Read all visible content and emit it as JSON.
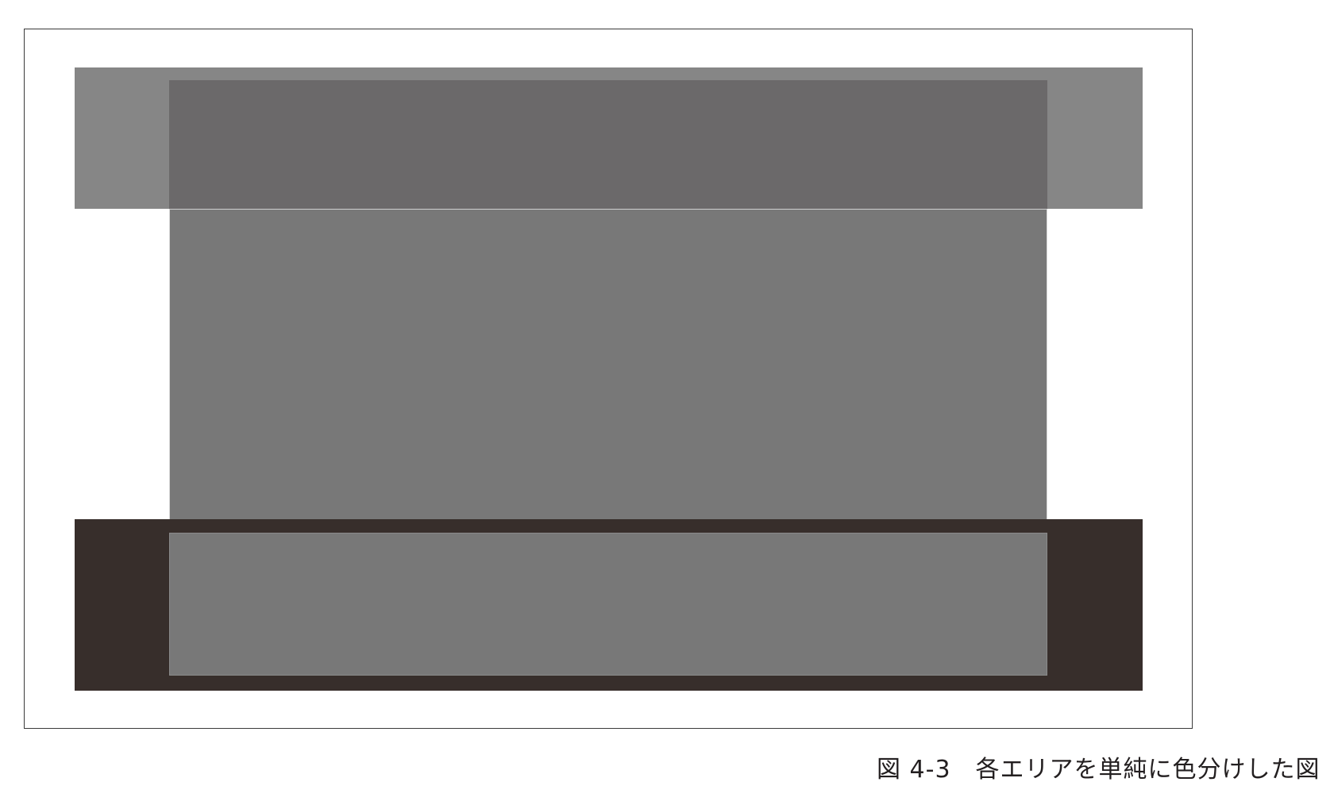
{
  "figure": {
    "caption": "図 4-3　各エリアを単純に色分けした図"
  },
  "colors": {
    "frame_border": "#3a3a3a",
    "header_band": "#868686",
    "header_inner": "#6b696a",
    "main_area": "#787878",
    "footer_band": "#372e2b",
    "footer_inner": "#787878",
    "background": "#ffffff"
  }
}
